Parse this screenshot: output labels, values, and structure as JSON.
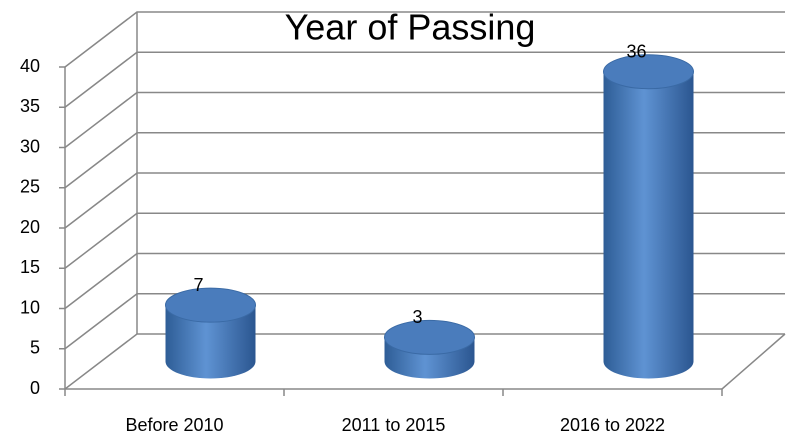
{
  "chart_data": {
    "type": "bar",
    "title": "Year of Passing",
    "categories": [
      "Before 2010",
      "2011 to 2015",
      "2016 to 2022"
    ],
    "values": [
      7,
      3,
      36
    ],
    "color": "#4f81bd",
    "ylim": [
      0,
      40
    ],
    "yticks": [
      0,
      5,
      10,
      15,
      20,
      25,
      30,
      35,
      40
    ],
    "grid": true
  }
}
